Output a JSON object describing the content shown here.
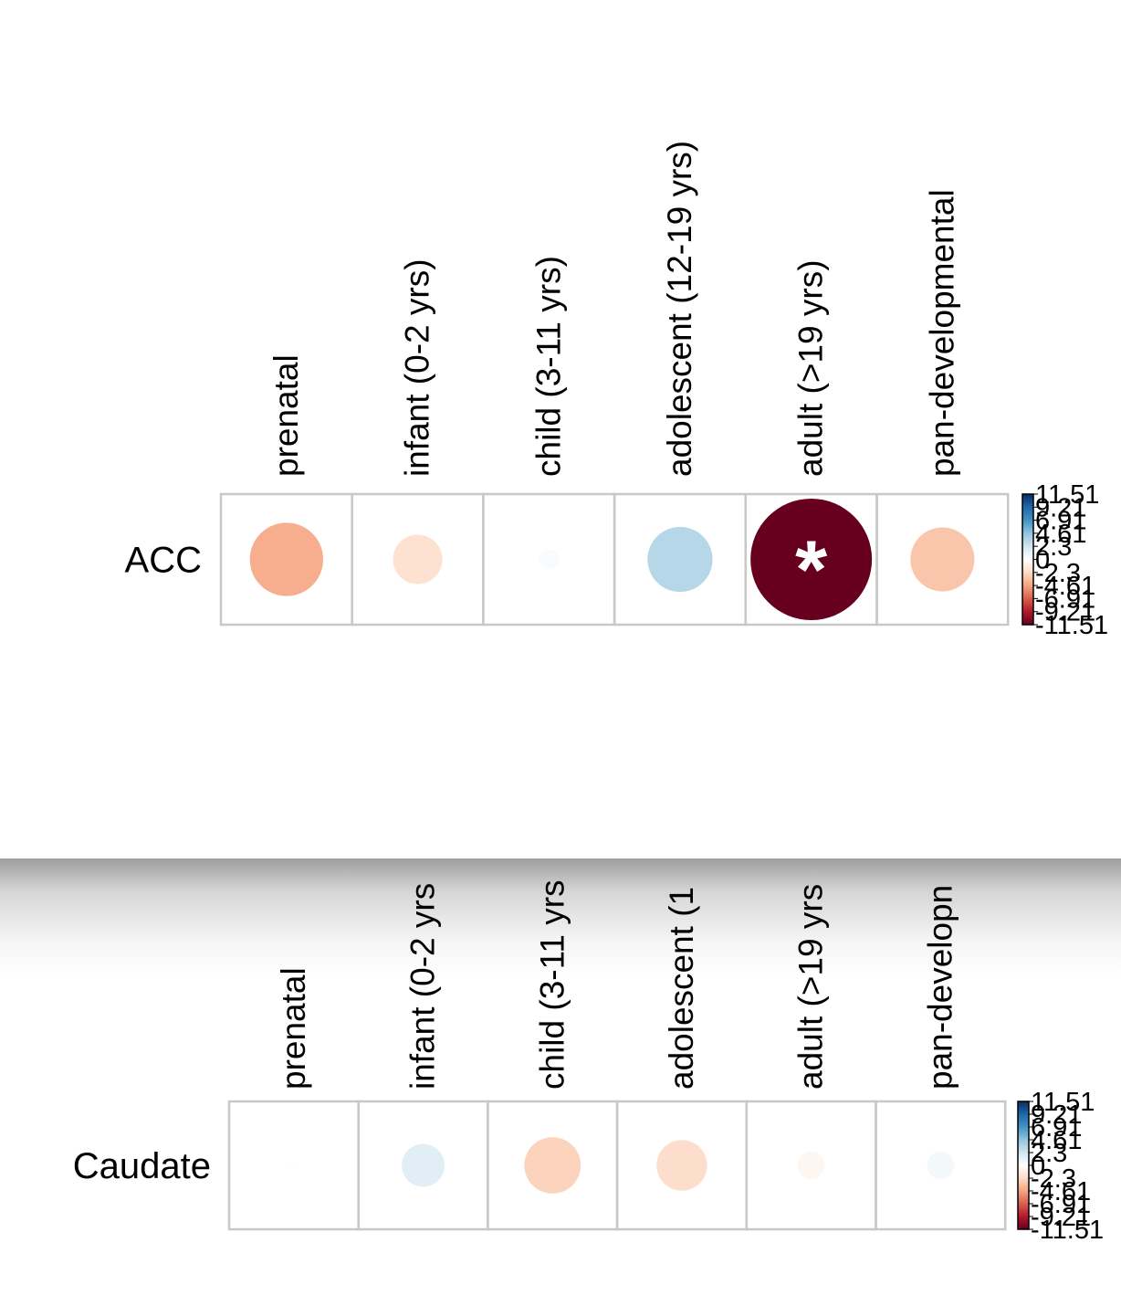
{
  "colorbar": {
    "tick_labels": [
      "11.51",
      "9.21",
      "6.91",
      "4.61",
      "2.3",
      "0",
      "-2.3",
      "-4.61",
      "-6.91",
      "-9.21",
      "-11.51"
    ],
    "colors": [
      "#053061",
      "#2166AC",
      "#4393C3",
      "#92C5DE",
      "#D1E5F0",
      "#FFFFFF",
      "#FDDBC7",
      "#F4A582",
      "#D6604D",
      "#B2182B",
      "#67001F"
    ]
  },
  "chart_data": [
    {
      "type": "heatmap",
      "row_label": "ACC",
      "categories": [
        "prenatal",
        "infant (0-2 yrs)",
        "child (3-11 yrs)",
        "adolescent (12-19 yrs)",
        "adult (>19 yrs)",
        "pan-developmental"
      ],
      "values": [
        -4.2,
        -1.9,
        0.3,
        3.3,
        -11.51,
        -3.2
      ],
      "significant": [
        false,
        false,
        false,
        false,
        true,
        false
      ],
      "significance_marker": "*",
      "scale_limits": [
        -11.51,
        11.51
      ]
    },
    {
      "type": "heatmap",
      "row_label": "Caudate",
      "categories": [
        "prenatal",
        "infant (0-2 yrs",
        "child (3-11 yrs",
        "adolescent (1",
        "adult (>19 yrs",
        "pan-developn"
      ],
      "values": [
        -0.05,
        1.5,
        -2.6,
        -2.1,
        -0.6,
        0.6
      ],
      "significant": [
        false,
        false,
        false,
        false,
        false,
        false
      ],
      "significance_marker": "*",
      "scale_limits": [
        -11.51,
        11.51
      ]
    }
  ]
}
